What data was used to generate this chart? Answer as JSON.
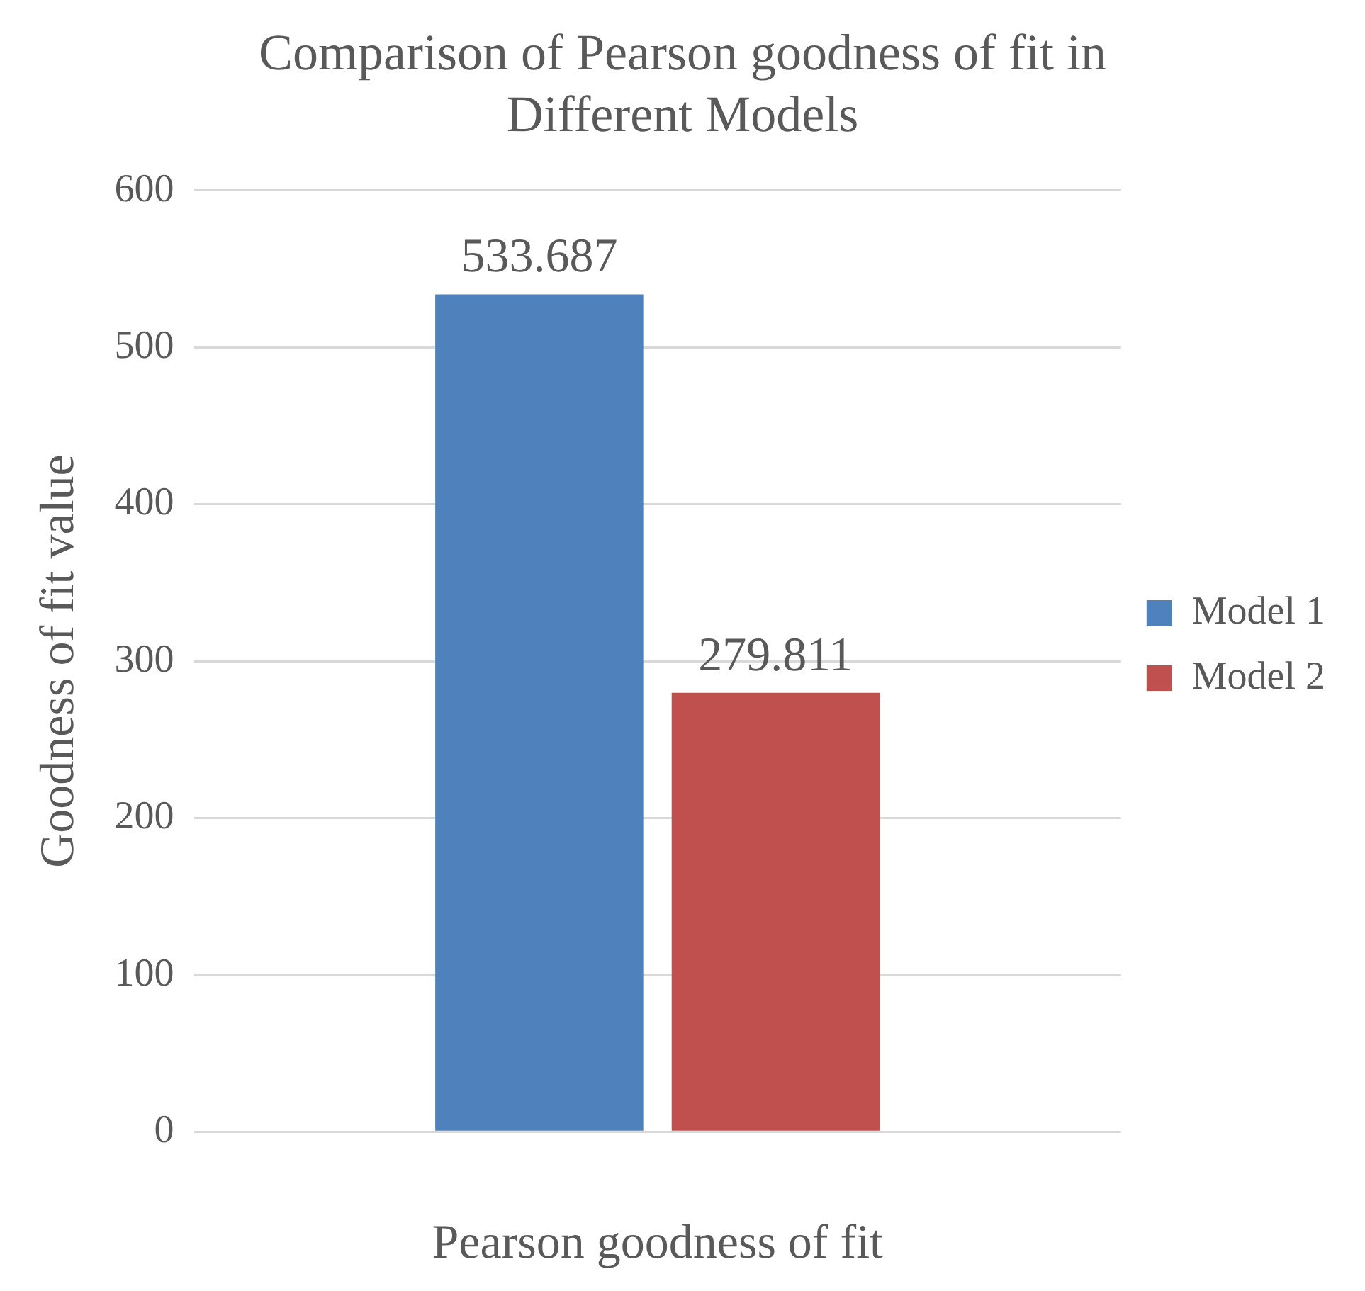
{
  "chart_data": {
    "type": "bar",
    "title": [
      "Comparison of Pearson goodness of fit in",
      "Different Models"
    ],
    "xlabel": "Pearson goodness of fit",
    "ylabel": "Goodness of fit value",
    "categories": [
      null
    ],
    "series": [
      {
        "name": "Model 1",
        "color": "#4f81bd",
        "values": [
          533.687
        ]
      },
      {
        "name": "Model 2",
        "color": "#c0504d",
        "values": [
          279.811
        ]
      }
    ],
    "ylim": [
      0,
      600
    ],
    "yticks": [
      0,
      100,
      200,
      300,
      400,
      500,
      600
    ],
    "grid": "y",
    "legend": "right",
    "data_labels": true
  }
}
